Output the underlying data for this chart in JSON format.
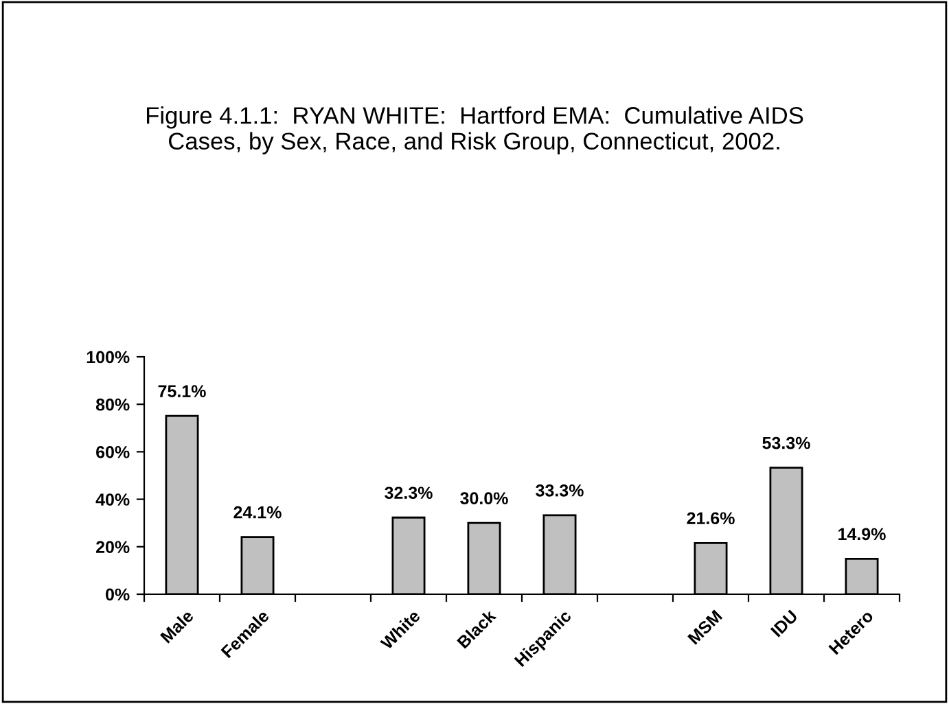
{
  "chart_data": {
    "type": "bar",
    "title": "Figure 4.1.1:  RYAN WHITE:  Hartford EMA:  Cumulative AIDS\nCases, by Sex, Race, and Risk Group, Connecticut, 2002.",
    "categories": [
      "Male",
      "Female",
      null,
      "White",
      "Black",
      "Hispanic",
      null,
      "MSM",
      "IDU",
      "Hetero"
    ],
    "values": [
      75.1,
      24.1,
      null,
      32.3,
      30.0,
      33.3,
      null,
      21.6,
      53.3,
      14.9
    ],
    "value_labels": [
      "75.1%",
      "24.1%",
      null,
      "32.3%",
      "30.0%",
      "33.3%",
      null,
      "21.6%",
      "53.3%",
      "14.9%"
    ],
    "color": "#c0c0c0",
    "ylim": [
      0,
      100
    ],
    "yticks": [
      {
        "value": 0,
        "label": "0%"
      },
      {
        "value": 20,
        "label": "20%"
      },
      {
        "value": 40,
        "label": "40%"
      },
      {
        "value": 60,
        "label": "60%"
      },
      {
        "value": 80,
        "label": "80%"
      },
      {
        "value": 100,
        "label": "100%"
      }
    ],
    "grid": false
  }
}
